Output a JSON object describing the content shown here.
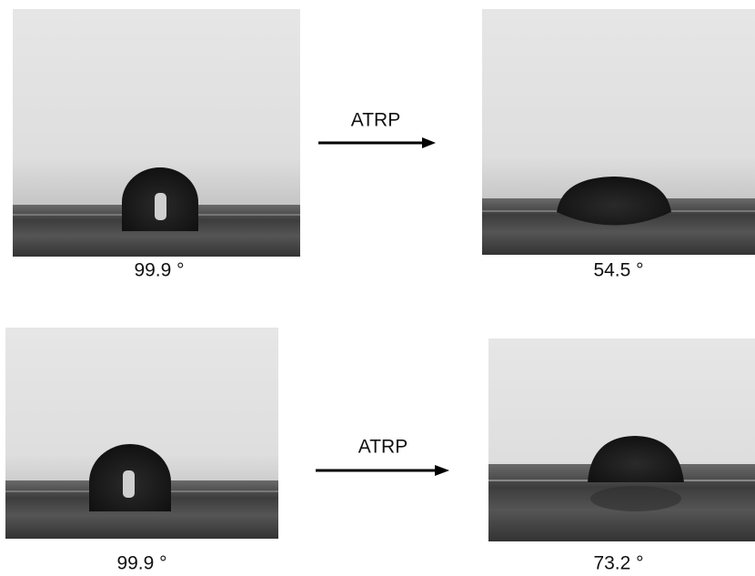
{
  "rows": [
    {
      "before_label": "99.9 °",
      "process": "ATRP",
      "after_label": "54.5 °"
    },
    {
      "before_label": "99.9 °",
      "process": "ATRP",
      "after_label": "73.2 °"
    }
  ]
}
